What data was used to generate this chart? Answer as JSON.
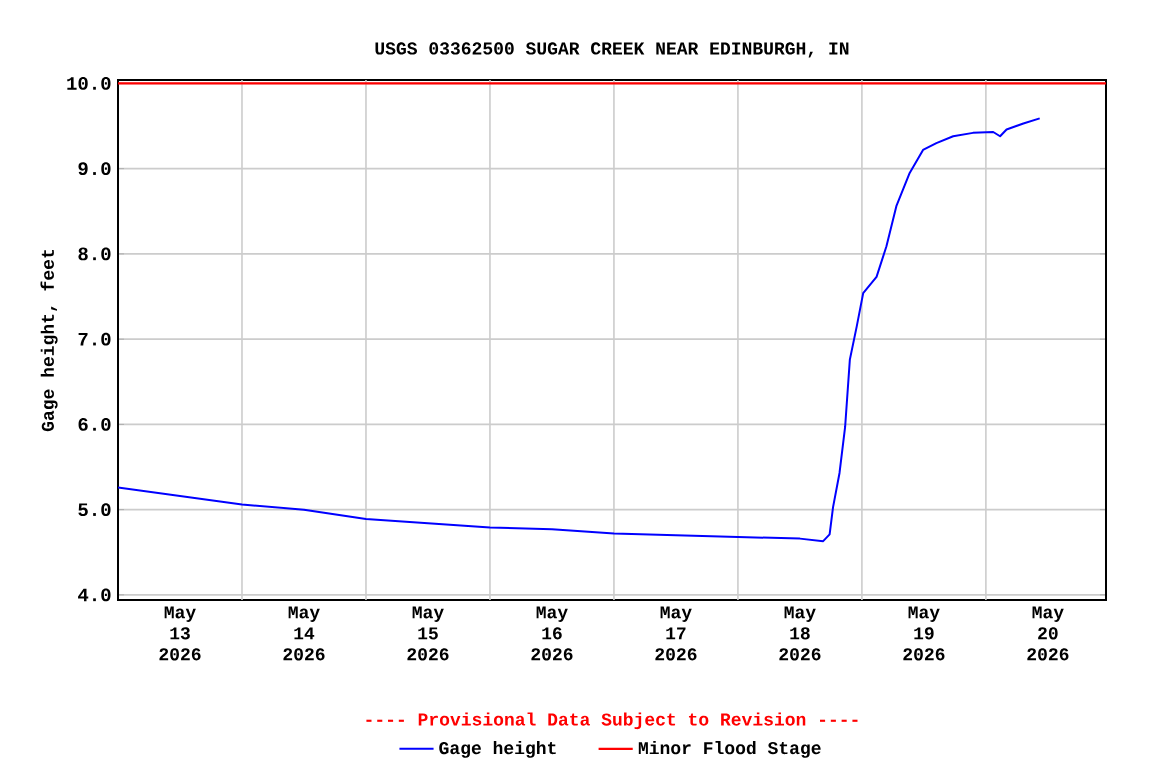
{
  "chart_data": {
    "type": "line",
    "title": "USGS 03362500 SUGAR CREEK NEAR EDINBURGH, IN",
    "ylabel": "Gage height, feet",
    "annotations": [
      "---- Provisional Data Subject to Revision ----"
    ],
    "x": [
      "2026-05-13T00:00",
      "2026-05-14T00:00",
      "2026-05-14T12:00",
      "2026-05-15T00:00",
      "2026-05-15T12:00",
      "2026-05-16T00:00",
      "2026-05-16T12:00",
      "2026-05-17T00:00",
      "2026-05-17T12:00",
      "2026-05-18T00:00",
      "2026-05-18T12:00",
      "2026-05-18T16:30",
      "2026-05-18T17:45",
      "2026-05-18T18:25",
      "2026-05-18T19:40",
      "2026-05-18T20:45",
      "2026-05-18T21:40",
      "2026-05-18T23:00",
      "2026-05-19T00:15",
      "2026-05-19T02:50",
      "2026-05-19T04:45",
      "2026-05-19T06:40",
      "2026-05-19T09:15",
      "2026-05-19T11:50",
      "2026-05-19T14:25",
      "2026-05-19T17:40",
      "2026-05-19T21:30",
      "2026-05-20T01:25",
      "2026-05-20T02:45",
      "2026-05-20T04:00",
      "2026-05-20T07:15",
      "2026-05-20T10:25"
    ],
    "series": [
      {
        "name": "Gage height",
        "color": "#0000ff",
        "values": [
          5.26,
          5.06,
          5.0,
          4.89,
          4.84,
          4.79,
          4.77,
          4.72,
          4.7,
          4.68,
          4.66,
          4.63,
          4.71,
          5.03,
          5.43,
          5.97,
          6.76,
          7.15,
          7.54,
          7.73,
          8.09,
          8.56,
          8.95,
          9.22,
          9.3,
          9.38,
          9.42,
          9.43,
          9.38,
          9.46,
          9.53,
          9.59
        ]
      }
    ],
    "ref_lines": [
      {
        "axis": "y",
        "value": 10.0,
        "label": "Minor Flood Stage",
        "color": "#ff0000"
      }
    ],
    "xlim": [
      "2026-05-13T00:00",
      "2026-05-20T23:15"
    ],
    "xticks": [
      {
        "value": "2026-05-13T12:00",
        "label": "May 13 2026"
      },
      {
        "value": "2026-05-14T12:00",
        "label": "May 14 2026"
      },
      {
        "value": "2026-05-15T12:00",
        "label": "May 15 2026"
      },
      {
        "value": "2026-05-16T12:00",
        "label": "May 16 2026"
      },
      {
        "value": "2026-05-17T12:00",
        "label": "May 17 2026"
      },
      {
        "value": "2026-05-18T12:00",
        "label": "May 18 2026"
      },
      {
        "value": "2026-05-19T12:00",
        "label": "May 19 2026"
      },
      {
        "value": "2026-05-20T12:00",
        "label": "May 20 2026"
      },
      {
        "value": "2026-05-14T00:00",
        "label": null
      },
      {
        "value": "2026-05-15T00:00",
        "label": null
      },
      {
        "value": "2026-05-16T00:00",
        "label": null
      },
      {
        "value": "2026-05-17T00:00",
        "label": null
      },
      {
        "value": "2026-05-18T00:00",
        "label": null
      },
      {
        "value": "2026-05-19T00:00",
        "label": null
      },
      {
        "value": "2026-05-20T00:00",
        "label": null
      }
    ],
    "ylim": [
      3.94,
      10.04
    ],
    "yticks": [
      {
        "value": 4,
        "label": "4.0"
      },
      {
        "value": 5,
        "label": "5.0"
      },
      {
        "value": 6,
        "label": "6.0"
      },
      {
        "value": 7,
        "label": "7.0"
      },
      {
        "value": 8,
        "label": "8.0"
      },
      {
        "value": 9,
        "label": "9.0"
      },
      {
        "value": 10,
        "label": "10.0"
      }
    ],
    "grid": true,
    "legend": "bottom",
    "marker": "none",
    "line_style": "solid"
  }
}
